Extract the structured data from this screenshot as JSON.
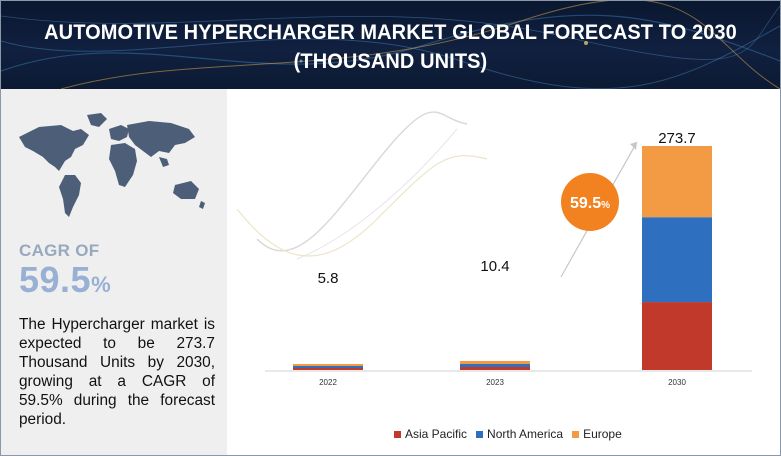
{
  "title": "AUTOMOTIVE HYPERCHARGER MARKET GLOBAL FORECAST TO 2030 (THOUSAND UNITS)",
  "sidebar": {
    "cagr_label": "CAGR OF",
    "cagr_value": "59.5",
    "cagr_unit": "%",
    "description": "The Hypercharger market is expected to be 273.7 Thousand Units by 2030, growing at a CAGR of 59.5% during the forecast period."
  },
  "chart_data": {
    "type": "bar",
    "stacked": true,
    "categories": [
      "2022",
      "2023",
      "2030"
    ],
    "series": [
      {
        "name": "Asia Pacific",
        "color": "#c0392b",
        "values": [
          1.8,
          3.2,
          83.0
        ]
      },
      {
        "name": "North America",
        "color": "#2e6fbf",
        "values": [
          2.0,
          3.6,
          103.7
        ]
      },
      {
        "name": "Europe",
        "color": "#f39a45",
        "values": [
          2.0,
          3.6,
          87.0
        ]
      }
    ],
    "totals": [
      "5.8",
      "10.4",
      "273.7"
    ],
    "ylim": [
      0,
      273.7
    ],
    "cagr_badge": {
      "value": "59.5",
      "unit": "%",
      "color": "#f28220"
    },
    "legend_position": "bottom"
  }
}
